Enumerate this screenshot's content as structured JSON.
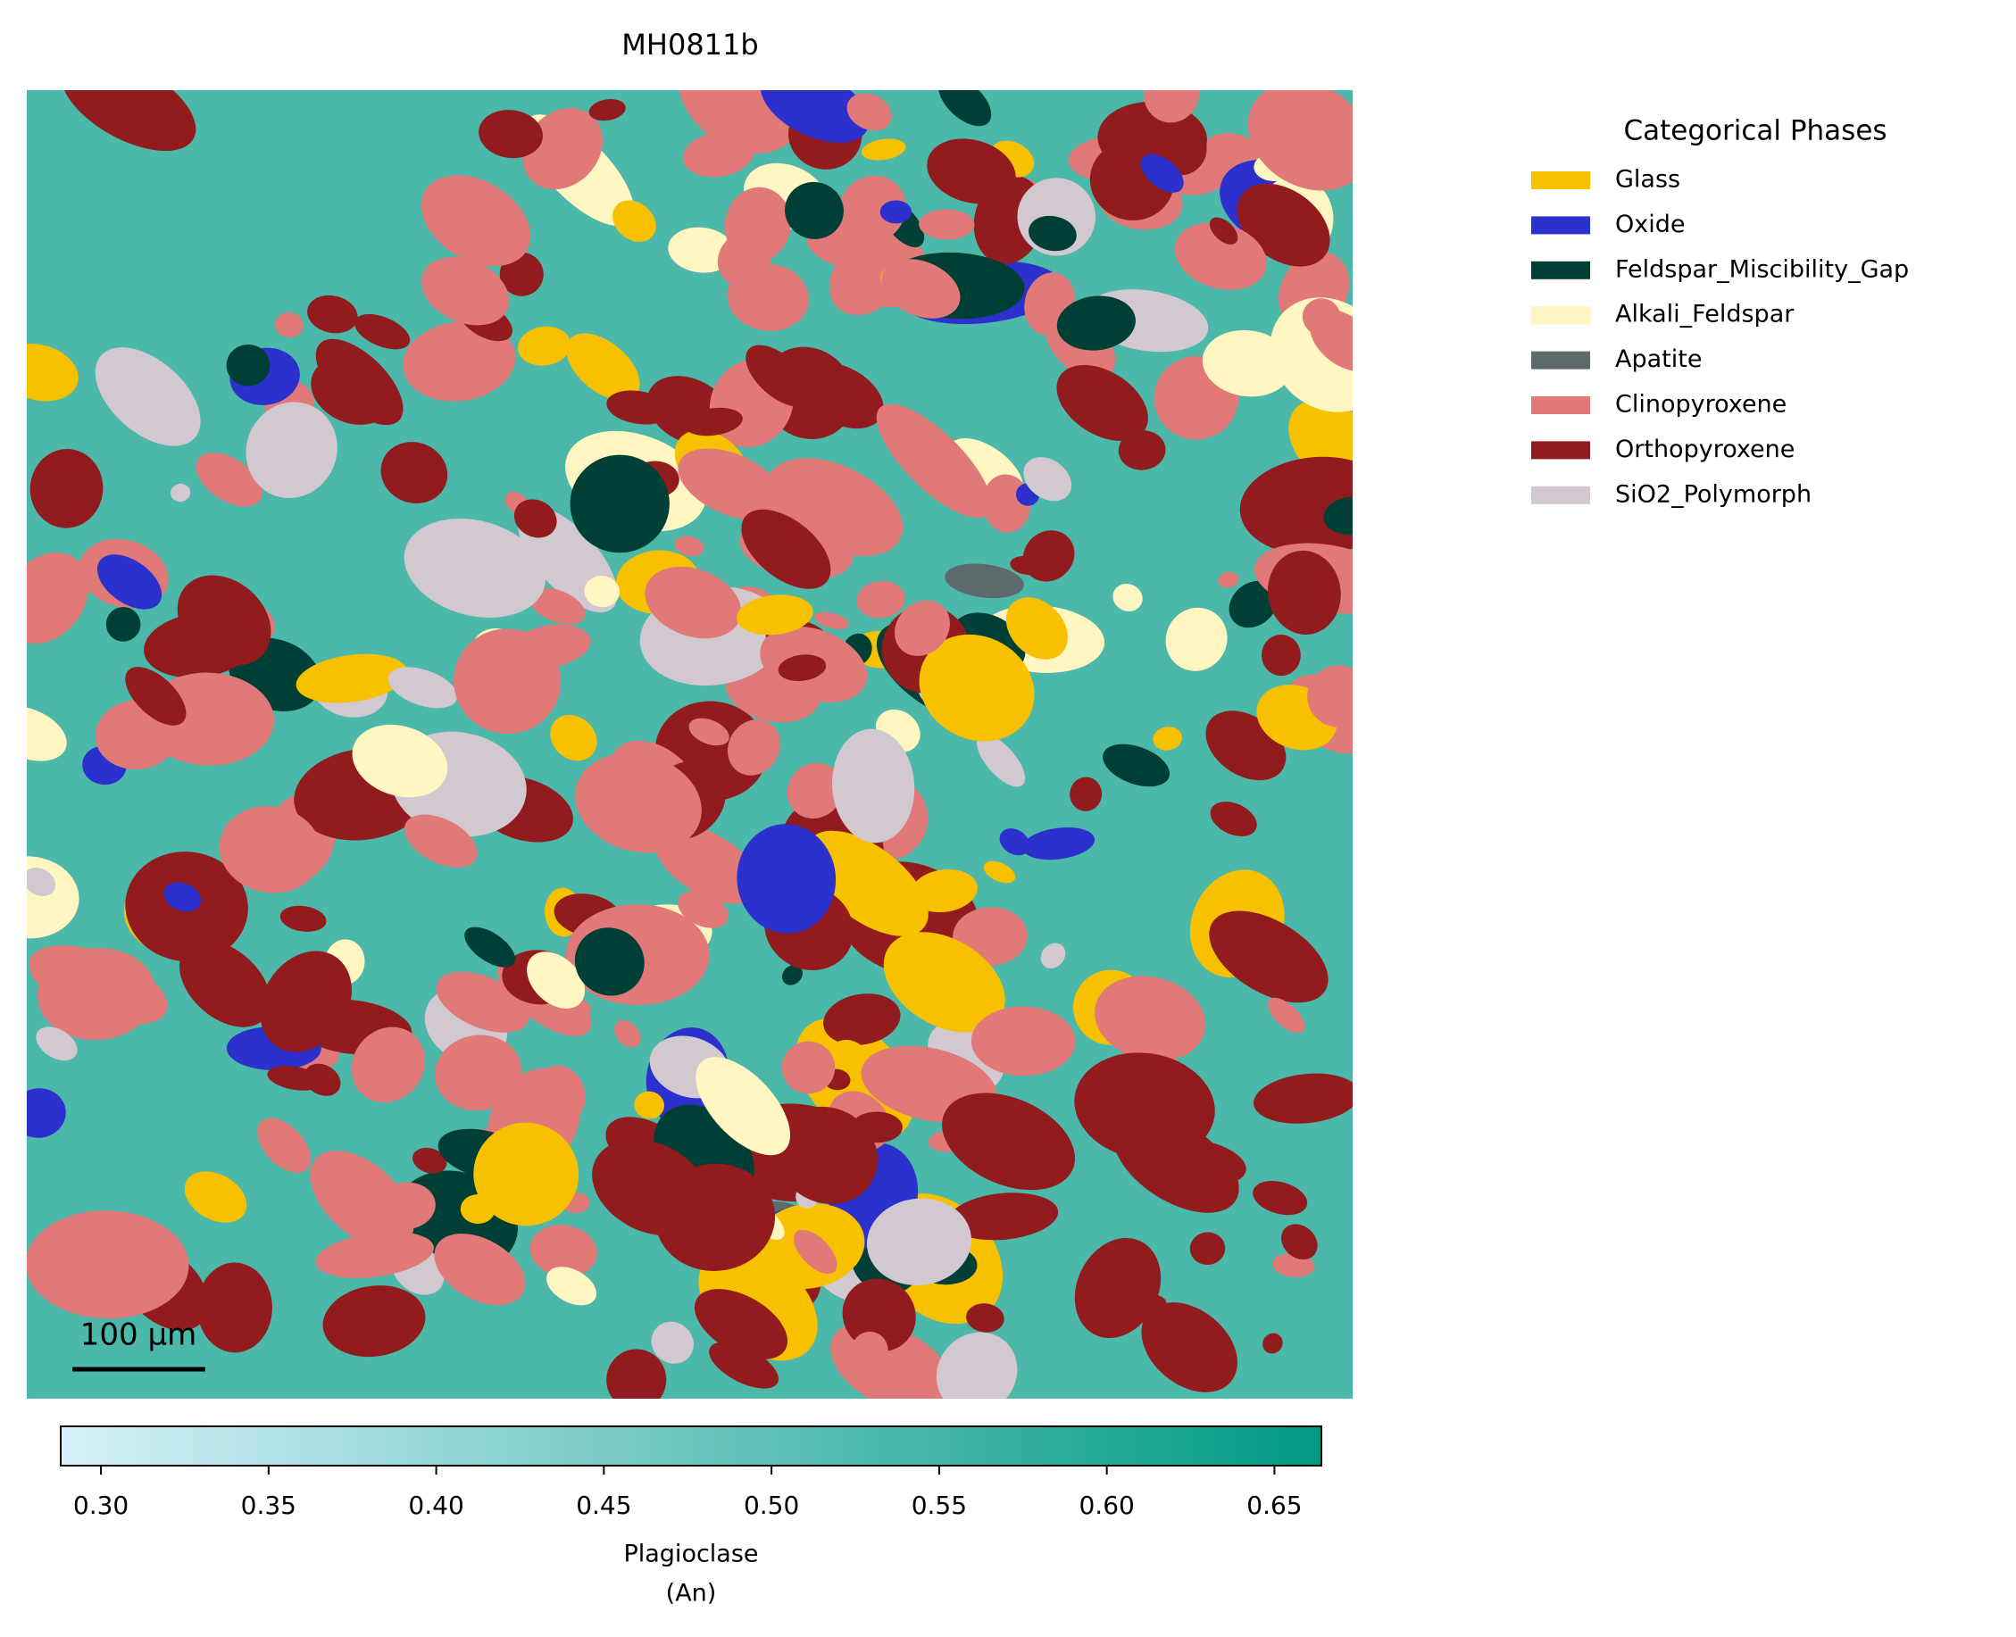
{
  "chart_data": {
    "type": "phase_map",
    "title": "MH0811b",
    "scale_bar": "100 µm",
    "legend_title": "Categorical Phases",
    "series": [
      {
        "name": "Glass",
        "color": "#f8c100"
      },
      {
        "name": "Oxide",
        "color": "#2c30cc"
      },
      {
        "name": "Feldspar_Miscibility_Gap",
        "color": "#003f35"
      },
      {
        "name": "Alkali_Feldspar",
        "color": "#fff6c2"
      },
      {
        "name": "Apatite",
        "color": "#5c6a6b"
      },
      {
        "name": "Clinopyroxene",
        "color": "#e07977"
      },
      {
        "name": "Orthopyroxene",
        "color": "#921b1e"
      },
      {
        "name": "SiO2_Polymorph",
        "color": "#d1c8d0"
      }
    ],
    "colorbar": {
      "label": [
        "Plagioclase",
        "(An)"
      ],
      "colors": [
        "#d6f1fb",
        "#009a84"
      ],
      "lim": [
        0.288,
        0.664
      ],
      "ticks": [
        {
          "value": 0.3,
          "label": "0.30"
        },
        {
          "value": 0.35,
          "label": "0.35"
        },
        {
          "value": 0.4,
          "label": "0.40"
        },
        {
          "value": 0.45,
          "label": "0.45"
        },
        {
          "value": 0.5,
          "label": "0.50"
        },
        {
          "value": 0.55,
          "label": "0.55"
        },
        {
          "value": 0.6,
          "label": "0.60"
        },
        {
          "value": 0.65,
          "label": "0.65"
        }
      ]
    }
  }
}
